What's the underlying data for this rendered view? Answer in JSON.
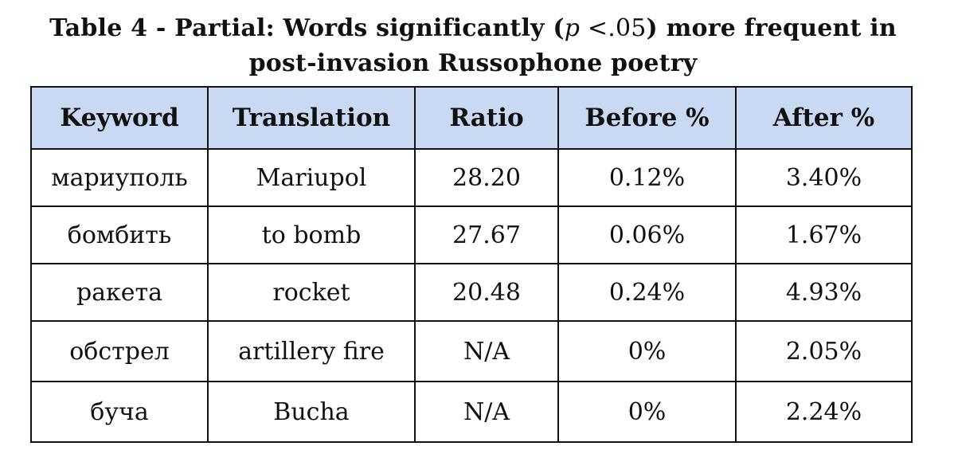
{
  "caption": {
    "line1_prefix": "Table 4 - Partial: Words significantly (",
    "p_symbol": "p",
    "math": " <.05",
    "line1_suffix": ") more frequent in",
    "line2": "post-invasion Russophone poetry"
  },
  "table": {
    "headers": [
      "Keyword",
      "Translation",
      "Ratio",
      "Before %",
      "After %"
    ],
    "rows": [
      [
        "мариуполь",
        "Mariupol",
        "28.20",
        "0.12%",
        "3.40%"
      ],
      [
        "бомбить",
        "to bomb",
        "27.67",
        "0.06%",
        "1.67%"
      ],
      [
        "ракета",
        "rocket",
        "20.48",
        "0.24%",
        "4.93%"
      ],
      [
        "обстрел",
        "artillery fire",
        "N/A",
        "0%",
        "2.05%"
      ],
      [
        "буча",
        "Bucha",
        "N/A",
        "0%",
        "2.24%"
      ]
    ]
  },
  "colors": {
    "header_background": "#c9d9f3",
    "border": "#111111"
  }
}
